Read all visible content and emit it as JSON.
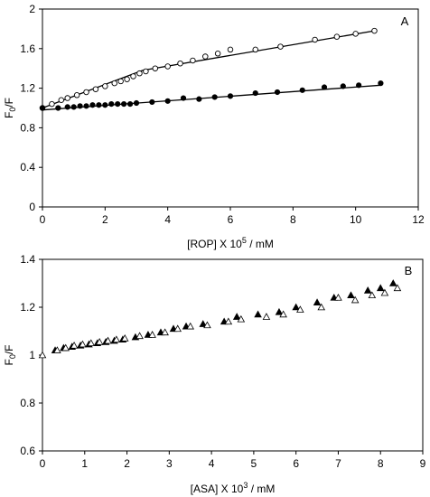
{
  "chart_data": [
    {
      "type": "scatter",
      "panel_label": "A",
      "xlabel": "[ROP] X 10",
      "xlabel_sup": "5",
      "xlabel_unit": " / mM",
      "ylabel": "F",
      "ylabel_sub": "0",
      "ylabel_tail": "/F",
      "xlim": [
        0,
        12
      ],
      "ylim": [
        0,
        2
      ],
      "x_ticks": [
        "0",
        "2",
        "4",
        "6",
        "8",
        "10",
        "12"
      ],
      "y_ticks": [
        "0",
        "0.4",
        "0.8",
        "1.2",
        "1.6",
        "2"
      ],
      "grid": false,
      "series": [
        {
          "marker": "open-circle",
          "points": [
            [
              0,
              1.0
            ],
            [
              0.3,
              1.04
            ],
            [
              0.6,
              1.08
            ],
            [
              0.8,
              1.1
            ],
            [
              1.1,
              1.13
            ],
            [
              1.4,
              1.16
            ],
            [
              1.7,
              1.19
            ],
            [
              2.0,
              1.22
            ],
            [
              2.3,
              1.25
            ],
            [
              2.5,
              1.27
            ],
            [
              2.7,
              1.29
            ],
            [
              2.9,
              1.32
            ],
            [
              3.1,
              1.35
            ],
            [
              3.3,
              1.37
            ],
            [
              3.6,
              1.4
            ],
            [
              4.0,
              1.42
            ],
            [
              4.4,
              1.45
            ],
            [
              4.8,
              1.48
            ],
            [
              5.2,
              1.52
            ],
            [
              5.6,
              1.55
            ],
            [
              6.0,
              1.59
            ],
            [
              6.8,
              1.59
            ],
            [
              7.6,
              1.62
            ],
            [
              8.7,
              1.69
            ],
            [
              9.4,
              1.72
            ],
            [
              10.0,
              1.75
            ],
            [
              10.6,
              1.78
            ]
          ],
          "fit_line": [
            [
              0,
              1.0
            ],
            [
              3.2,
              1.38
            ],
            [
              10.6,
              1.78
            ]
          ]
        },
        {
          "marker": "filled-circle",
          "points": [
            [
              0,
              1.0
            ],
            [
              0.5,
              1.0
            ],
            [
              0.8,
              1.01
            ],
            [
              1.0,
              1.01
            ],
            [
              1.2,
              1.02
            ],
            [
              1.4,
              1.02
            ],
            [
              1.6,
              1.03
            ],
            [
              1.8,
              1.03
            ],
            [
              2.0,
              1.03
            ],
            [
              2.2,
              1.04
            ],
            [
              2.4,
              1.04
            ],
            [
              2.6,
              1.04
            ],
            [
              2.8,
              1.04
            ],
            [
              3.0,
              1.05
            ],
            [
              3.5,
              1.06
            ],
            [
              4.0,
              1.07
            ],
            [
              4.5,
              1.1
            ],
            [
              5.0,
              1.09
            ],
            [
              5.5,
              1.11
            ],
            [
              6.0,
              1.12
            ],
            [
              6.8,
              1.15
            ],
            [
              7.5,
              1.16
            ],
            [
              8.3,
              1.18
            ],
            [
              9.0,
              1.21
            ],
            [
              9.6,
              1.22
            ],
            [
              10.1,
              1.23
            ],
            [
              10.8,
              1.25
            ]
          ],
          "fit_line": [
            [
              0,
              0.98
            ],
            [
              10.8,
              1.23
            ]
          ]
        }
      ]
    },
    {
      "type": "scatter",
      "panel_label": "B",
      "xlabel": "[ASA] X 10",
      "xlabel_sup": "3",
      "xlabel_unit": " / mM",
      "ylabel": "F",
      "ylabel_sub": "0",
      "ylabel_tail": "/F",
      "xlim": [
        0,
        9
      ],
      "ylim": [
        0.6,
        1.4
      ],
      "x_ticks": [
        "0",
        "1",
        "2",
        "3",
        "4",
        "5",
        "6",
        "7",
        "8",
        "9"
      ],
      "y_ticks": [
        "0.6",
        "0.8",
        "1",
        "1.2",
        "1.4"
      ],
      "grid": false,
      "series": [
        {
          "marker": "filled-triangle",
          "points": [
            [
              0.3,
              1.02
            ],
            [
              0.5,
              1.03
            ],
            [
              0.7,
              1.035
            ],
            [
              0.9,
              1.04
            ],
            [
              1.1,
              1.045
            ],
            [
              1.3,
              1.05
            ],
            [
              1.5,
              1.055
            ],
            [
              1.7,
              1.06
            ],
            [
              1.9,
              1.065
            ],
            [
              2.2,
              1.075
            ],
            [
              2.5,
              1.085
            ],
            [
              2.8,
              1.095
            ],
            [
              3.1,
              1.11
            ],
            [
              3.4,
              1.12
            ],
            [
              3.8,
              1.13
            ],
            [
              4.3,
              1.14
            ],
            [
              4.6,
              1.16
            ],
            [
              5.1,
              1.17
            ],
            [
              5.6,
              1.18
            ],
            [
              6.0,
              1.2
            ],
            [
              6.5,
              1.22
            ],
            [
              6.9,
              1.24
            ],
            [
              7.3,
              1.25
            ],
            [
              7.7,
              1.27
            ],
            [
              8.0,
              1.28
            ],
            [
              8.3,
              1.3
            ]
          ]
        },
        {
          "marker": "open-triangle",
          "points": [
            [
              0,
              1.0
            ],
            [
              0.35,
              1.02
            ],
            [
              0.55,
              1.03
            ],
            [
              0.75,
              1.04
            ],
            [
              0.95,
              1.045
            ],
            [
              1.15,
              1.05
            ],
            [
              1.35,
              1.055
            ],
            [
              1.55,
              1.06
            ],
            [
              1.75,
              1.065
            ],
            [
              1.95,
              1.07
            ],
            [
              2.3,
              1.08
            ],
            [
              2.6,
              1.085
            ],
            [
              2.9,
              1.095
            ],
            [
              3.2,
              1.11
            ],
            [
              3.5,
              1.12
            ],
            [
              3.9,
              1.125
            ],
            [
              4.4,
              1.14
            ],
            [
              4.7,
              1.15
            ],
            [
              5.3,
              1.16
            ],
            [
              5.7,
              1.17
            ],
            [
              6.1,
              1.19
            ],
            [
              6.6,
              1.2
            ],
            [
              7.0,
              1.24
            ],
            [
              7.4,
              1.23
            ],
            [
              7.8,
              1.25
            ],
            [
              8.1,
              1.26
            ],
            [
              8.4,
              1.28
            ]
          ]
        }
      ]
    }
  ]
}
